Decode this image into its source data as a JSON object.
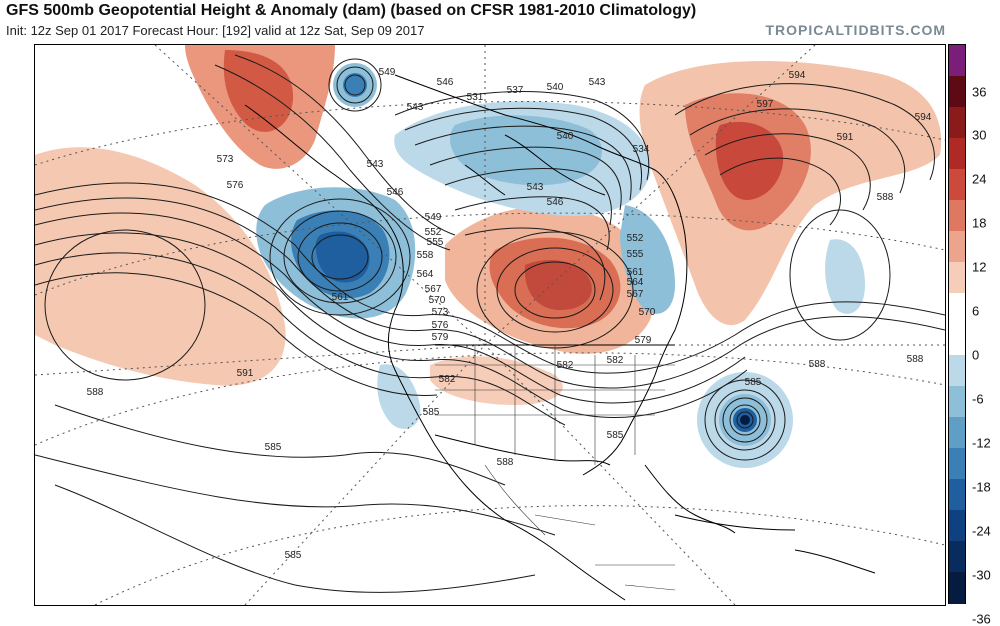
{
  "header": {
    "title": "GFS 500mb Geopotential Height & Anomaly (dam) (based on CFSR 1981-2010 Climatology)",
    "subtitle": "Init: 12z Sep 01 2017   Forecast Hour: [192]   valid at 12z Sat, Sep 09 2017",
    "brand": "TROPICALTIDBITS.COM"
  },
  "colorbar": {
    "unit": "dam",
    "ticks": [
      "36",
      "30",
      "24",
      "18",
      "12",
      "6",
      "0",
      "-6",
      "-12",
      "-18",
      "-24",
      "-30",
      "-36"
    ],
    "colors": [
      "#7a1e7a",
      "#5e0a14",
      "#8b1a1a",
      "#b02a25",
      "#cc4a3c",
      "#de7860",
      "#eca58c",
      "#f6cdb9",
      "#ffffff",
      "#ffffff",
      "#bcd9e9",
      "#8ebfd9",
      "#5f9fc6",
      "#3a7fb6",
      "#1f5fa0",
      "#0f4080",
      "#082c5e",
      "#051b40"
    ]
  },
  "map": {
    "anomaly_features": [
      {
        "name": "positive-anomaly-central-canada",
        "sign": "+"
      },
      {
        "name": "positive-anomaly-north-atlantic",
        "sign": "+"
      },
      {
        "name": "positive-anomaly-alaska-siberia",
        "sign": "+"
      },
      {
        "name": "negative-anomaly-gulf-of-alaska",
        "sign": "-"
      },
      {
        "name": "negative-anomaly-arctic-canada",
        "sign": "-"
      },
      {
        "name": "negative-anomaly-hurricane-atlantic",
        "sign": "-"
      }
    ],
    "contour_labels": [
      {
        "text": "549"
      },
      {
        "text": "546"
      },
      {
        "text": "543"
      },
      {
        "text": "531"
      },
      {
        "text": "537"
      },
      {
        "text": "540"
      },
      {
        "text": "543"
      },
      {
        "text": "573"
      },
      {
        "text": "576"
      },
      {
        "text": "543"
      },
      {
        "text": "546"
      },
      {
        "text": "549"
      },
      {
        "text": "552"
      },
      {
        "text": "555"
      },
      {
        "text": "558"
      },
      {
        "text": "561"
      },
      {
        "text": "564"
      },
      {
        "text": "567"
      },
      {
        "text": "570"
      },
      {
        "text": "573"
      },
      {
        "text": "576"
      },
      {
        "text": "579"
      },
      {
        "text": "582"
      },
      {
        "text": "585"
      },
      {
        "text": "588"
      },
      {
        "text": "591"
      },
      {
        "text": "594"
      },
      {
        "text": "597"
      },
      {
        "text": "585"
      },
      {
        "text": "588"
      },
      {
        "text": "591"
      },
      {
        "text": "594"
      },
      {
        "text": "588"
      },
      {
        "text": "585"
      },
      {
        "text": "588"
      },
      {
        "text": "588"
      },
      {
        "text": "585"
      },
      {
        "text": "582"
      },
      {
        "text": "534"
      },
      {
        "text": "540"
      },
      {
        "text": "546"
      },
      {
        "text": "543"
      },
      {
        "text": "552"
      },
      {
        "text": "555"
      },
      {
        "text": "561"
      },
      {
        "text": "564"
      },
      {
        "text": "567"
      },
      {
        "text": "570"
      },
      {
        "text": "579"
      },
      {
        "text": "582"
      },
      {
        "text": "585"
      }
    ]
  }
}
